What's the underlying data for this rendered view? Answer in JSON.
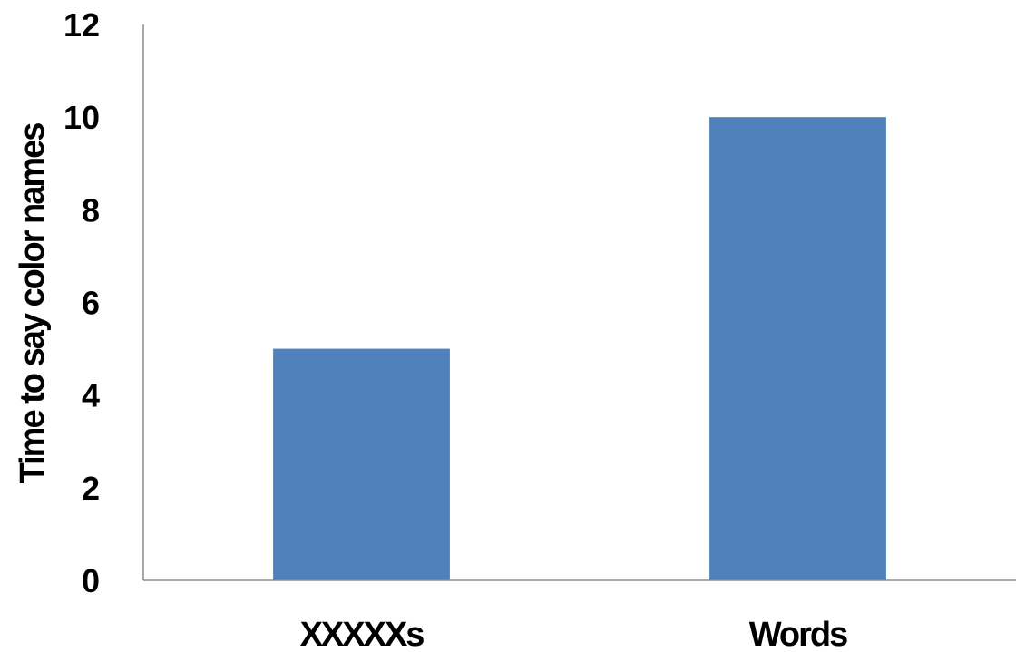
{
  "chart_data": {
    "type": "bar",
    "categories": [
      "XXXXXs",
      "Words"
    ],
    "values": [
      5,
      10
    ],
    "title": "",
    "xlabel": "",
    "ylabel": "Time to say color names",
    "ylim": [
      0,
      12
    ],
    "yticks": [
      "0",
      "2",
      "4",
      "6",
      "8",
      "10",
      "12"
    ],
    "grid": false,
    "legend": "none",
    "bar_color": "#4f81bd",
    "axis_color": "#8c8c8c"
  }
}
